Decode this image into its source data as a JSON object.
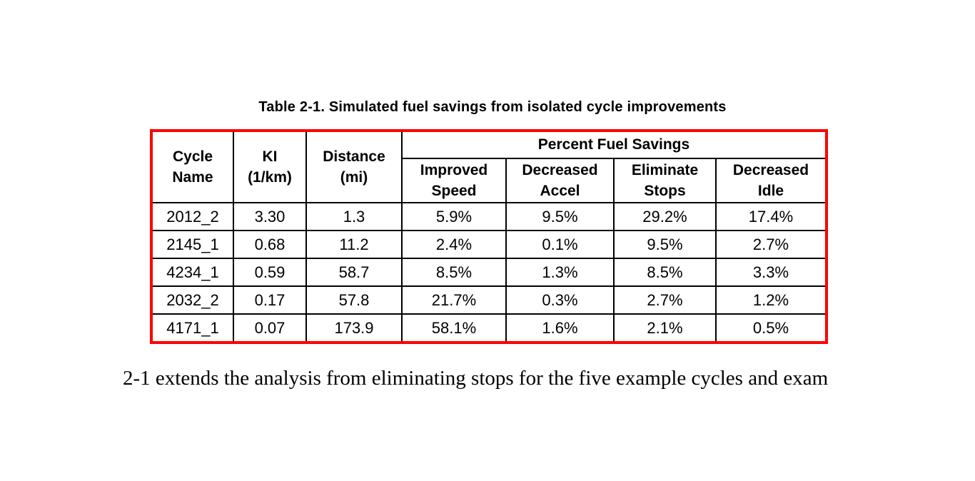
{
  "title": "Table 2-1. Simulated fuel savings from isolated cycle improvements",
  "table": {
    "border_color": "#ff0000",
    "grid_color": "#000000",
    "headers": {
      "cycle_name": "Cycle\nName",
      "ki": "KI\n(1/km)",
      "distance": "Distance\n(mi)",
      "group": "Percent Fuel Savings",
      "sub": {
        "improved_speed": "Improved\nSpeed",
        "decreased_accel": "Decreased\nAccel",
        "eliminate_stops": "Eliminate\nStops",
        "decreased_idle": "Decreased\nIdle"
      }
    },
    "rows": [
      [
        "2012_2",
        "3.30",
        "1.3",
        "5.9%",
        "9.5%",
        "29.2%",
        "17.4%"
      ],
      [
        "2145_1",
        "0.68",
        "11.2",
        "2.4%",
        "0.1%",
        "9.5%",
        "2.7%"
      ],
      [
        "4234_1",
        "0.59",
        "58.7",
        "8.5%",
        "1.3%",
        "8.5%",
        "3.3%"
      ],
      [
        "2032_2",
        "0.17",
        "57.8",
        "21.7%",
        "0.3%",
        "2.7%",
        "1.2%"
      ],
      [
        "4171_1",
        "0.07",
        "173.9",
        "58.1%",
        "1.6%",
        "2.1%",
        "0.5%"
      ]
    ]
  },
  "body_text": "2-1 extends the analysis from eliminating stops for the five example cycles and exam"
}
